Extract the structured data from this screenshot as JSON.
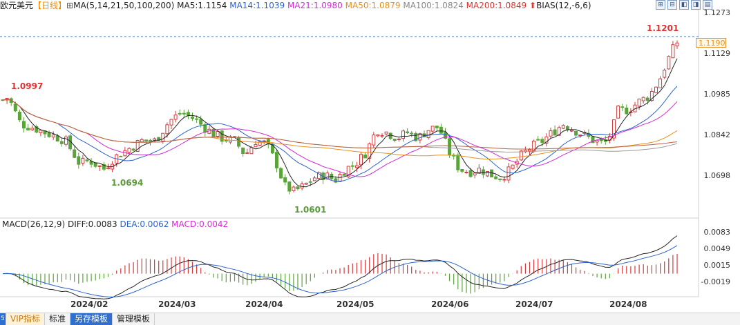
{
  "legend": {
    "symbol": "欧元美元",
    "period": "【日线】",
    "ma_def": "MA(5,14,21,50,100,200)",
    "ma5": "MA5:1.1154",
    "ma14": "MA14:1.1039",
    "ma21": "MA21:1.0980",
    "ma50": "MA50:1.0879",
    "ma100": "MA100:1.0824",
    "ma200": "MA200:1.0849",
    "bias": "BIAS(12,-6,6)"
  },
  "price_axis": [
    "1.1273",
    "1.1129",
    "1.0985",
    "1.0842",
    "1.0698"
  ],
  "current_price": "1.1190",
  "annotations": {
    "high_recent": "1.1201",
    "high_left": "1.0997",
    "low_feb": "1.0694",
    "low_apr": "1.0601"
  },
  "macd_legend": {
    "def": "MACD(26,12,9)",
    "diff": "DIFF:0.0083",
    "dea": "DEA:0.0062",
    "macd": "MACD:0.0042"
  },
  "macd_axis": [
    "0.0083",
    "0.0049",
    "0.0015",
    "-0.0019"
  ],
  "date_axis": [
    "2024/02",
    "2024/03",
    "2024/04",
    "2024/05",
    "2024/06",
    "2024/07",
    "2024/08"
  ],
  "tabs": {
    "edge": "5",
    "vip": "VIP指标",
    "standard": "标准",
    "save_template": "另存模板",
    "manage_template": "管理模板"
  },
  "colors": {
    "up": "#d33b3b",
    "down": "#5aa33a",
    "ma5": "#222222",
    "ma14": "#2a62c9",
    "ma21": "#d22bd2",
    "ma50": "#e8901a",
    "ma100": "#999999",
    "ma200": "#c0603a"
  }
}
